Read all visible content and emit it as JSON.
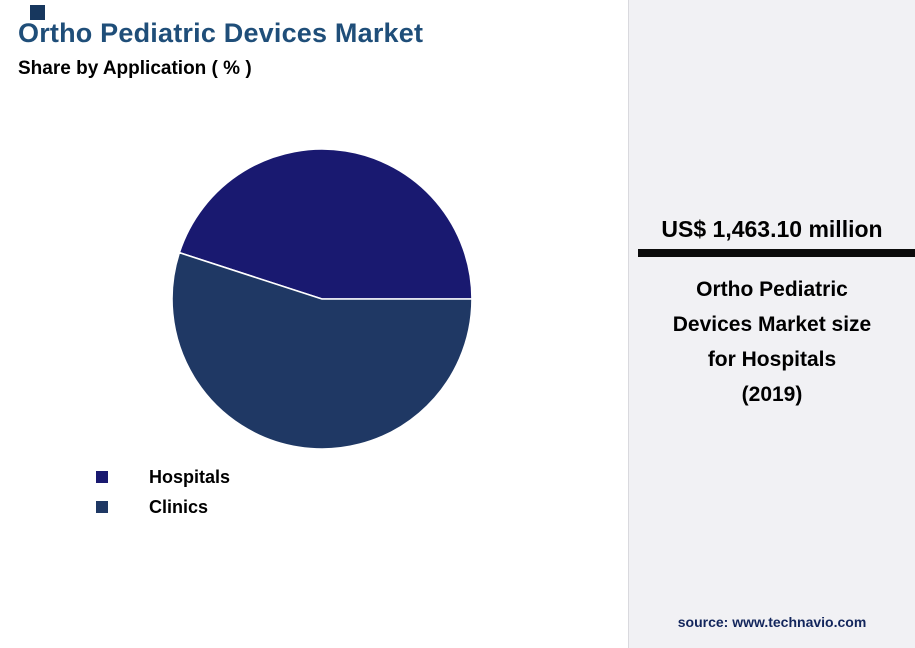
{
  "header": {
    "title": "Ortho Pediatric Devices Market",
    "subtitle": "Share by Application ( % )"
  },
  "chart_data": {
    "type": "pie",
    "title": "Ortho Pediatric Devices Market",
    "subtitle": "Share by Application ( % )",
    "categories": [
      "Hospitals",
      "Clinics"
    ],
    "values": [
      45,
      55
    ],
    "colors": [
      "#191970",
      "#1f3864"
    ],
    "start_angle_deg": 0,
    "direction": "counterclockwise",
    "legend_position": "bottom-left",
    "annotation": "US$ 1,463.10 million — Ortho Pediatric Devices Market size for Hospitals (2019)"
  },
  "legend": {
    "items": [
      {
        "label": "Hospitals",
        "color": "#191970"
      },
      {
        "label": "Clinics",
        "color": "#1f3864"
      }
    ]
  },
  "panel": {
    "highlight_value": "US$ 1,463.10 million",
    "caption_lines": [
      "Ortho Pediatric",
      "Devices Market size",
      "for Hospitals",
      "(2019)"
    ],
    "source": "source: www.technavio.com"
  }
}
